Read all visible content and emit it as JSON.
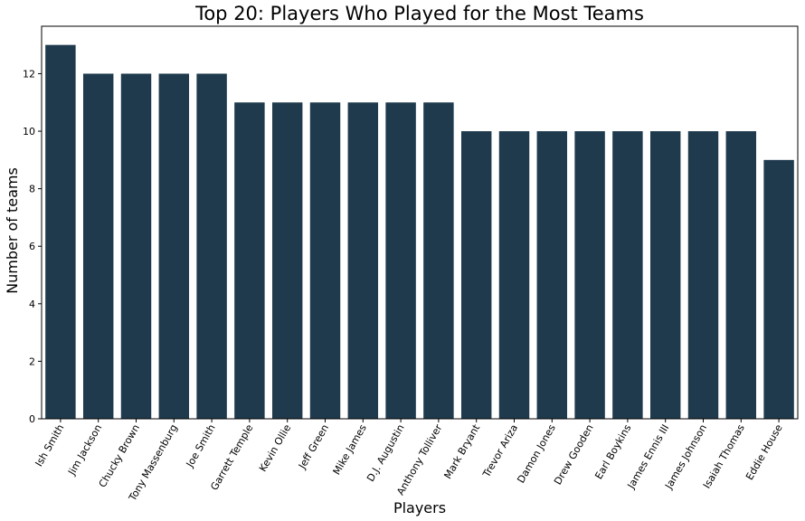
{
  "chart_data": {
    "type": "bar",
    "title": "Top 20: Players Who Played for the Most Teams",
    "xlabel": "Players",
    "ylabel": "Number of teams",
    "categories": [
      "Ish Smith",
      "Jim Jackson",
      "Chucky Brown",
      "Tony Massenburg",
      "Joe Smith",
      "Garrett Temple",
      "Kevin Ollie",
      "Jeff Green",
      "Mike James",
      "D.J. Augustin",
      "Anthony Tolliver",
      "Mark Bryant",
      "Trevor Ariza",
      "Damon Jones",
      "Drew Gooden",
      "Earl Boykins",
      "James Ennis III",
      "James Johnson",
      "Isaiah Thomas",
      "Eddie House"
    ],
    "values": [
      13,
      12,
      12,
      12,
      12,
      11,
      11,
      11,
      11,
      11,
      11,
      10,
      10,
      10,
      10,
      10,
      10,
      10,
      10,
      9
    ],
    "ylim": [
      0,
      13.65
    ],
    "yticks": [
      0,
      2,
      4,
      6,
      8,
      10,
      12
    ],
    "bar_color": "#1f3a4d",
    "grid": false
  }
}
